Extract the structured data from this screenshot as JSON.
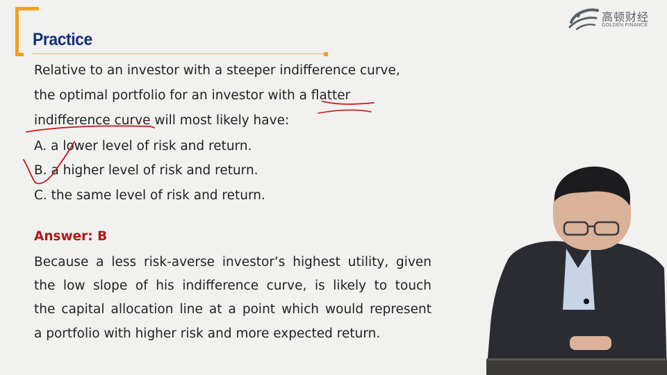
{
  "header": {
    "title": "Practice",
    "logo_cn": "高顿财经",
    "logo_en": "GOLDEN FINANCE"
  },
  "question": {
    "line1": "Relative to an investor with a steeper indifference curve,",
    "line2": "the optimal portfolio for an investor with a flatter",
    "line3": "indifference curve will most likely have:",
    "options": [
      "A. a lower level of risk and return.",
      "B. a higher level of risk and return.",
      "C. the same level of risk and return."
    ]
  },
  "answer": {
    "label": "Answer: B",
    "lines": [
      "Because a less risk-averse investor’s highest utility, given",
      "the low slope of his indifference curve, is likely to touch",
      "the capital allocation line at a point which would represent",
      "a portfolio with higher risk and more expected return."
    ]
  },
  "colors": {
    "title": "#14307a",
    "accent": "#f0a020",
    "answer_label": "#b01818",
    "ink": "#c21a1a"
  }
}
